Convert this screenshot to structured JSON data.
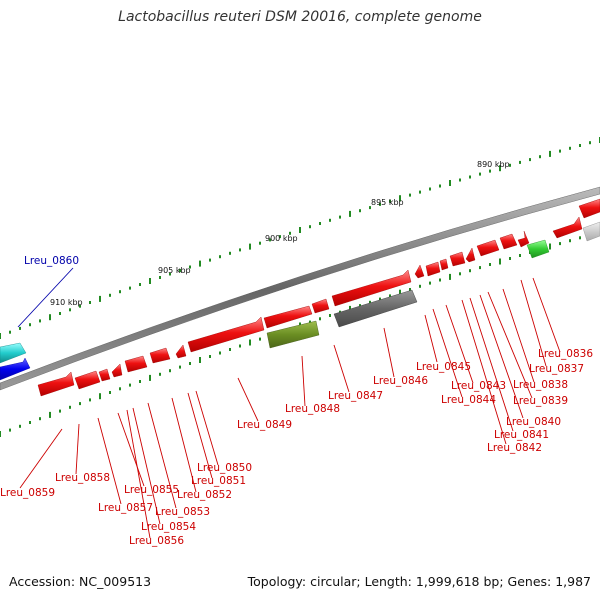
{
  "title": "Lactobacillus reuteri DSM 20016, complete genome",
  "footer": {
    "accession": "Accession: NC_009513",
    "summary": "Topology: circular; Length: 1,999,618 bp; Genes: 1,987"
  },
  "colors": {
    "forward_gene": "#ee1111",
    "reverse_gene_grey": "#707070",
    "olive_gene": "#6b8e23",
    "green_gene": "#33cc33",
    "cyan_gene": "#22cccc",
    "blue_gene": "#0000ee",
    "backbone": "#777777",
    "label_red": "#cc0000",
    "label_blue": "#0000aa",
    "tick_green": "#228b22"
  },
  "ticks": [
    "890 kbp",
    "895 kbp",
    "900 kbp",
    "905 kbp",
    "910 kbp"
  ],
  "labels": [
    "Lreu_0836",
    "Lreu_0837",
    "Lreu_0838",
    "Lreu_0839",
    "Lreu_0840",
    "Lreu_0841",
    "Lreu_0842",
    "Lreu_0843",
    "Lreu_0844",
    "Lreu_0845",
    "Lreu_0846",
    "Lreu_0847",
    "Lreu_0848",
    "Lreu_0849",
    "Lreu_0850",
    "Lreu_0851",
    "Lreu_0852",
    "Lreu_0853",
    "Lreu_0854",
    "Lreu_0855",
    "Lreu_0856",
    "Lreu_0857",
    "Lreu_0858",
    "Lreu_0859",
    "Lreu_0860"
  ]
}
